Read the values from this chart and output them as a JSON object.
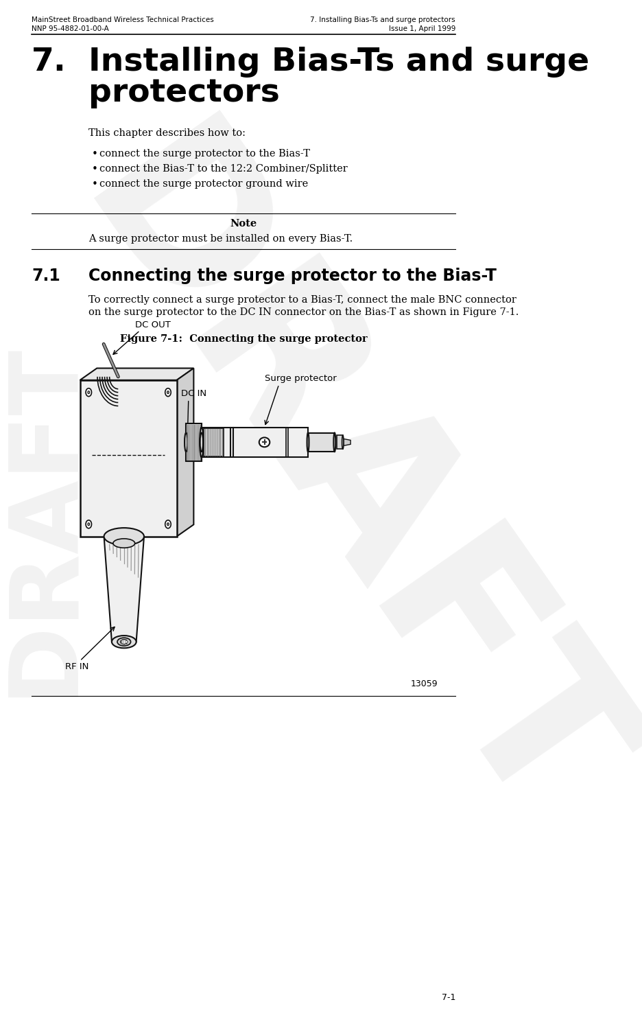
{
  "header_left_line1": "MainStreet Broadband Wireless Technical Practices",
  "header_left_line2": "NNP 95-4882-01-00-A",
  "header_right_line1": "7. Installing Bias-Ts and surge protectors",
  "header_right_line2": "Issue 1, April 1999",
  "chapter_number": "7.",
  "chapter_title_line1": "Installing Bias-Ts and surge",
  "chapter_title_line2": "protectors",
  "intro_text": "This chapter describes how to:",
  "bullets": [
    "connect the surge protector to the Bias-T",
    "connect the Bias-T to the 12:2 Combiner/Splitter",
    "connect the surge protector ground wire"
  ],
  "note_label": "Note",
  "note_text": "A surge protector must be installed on every Bias-T.",
  "section_number": "7.1",
  "section_title": "Connecting the surge protector to the Bias-T",
  "section_body_line1": "To correctly connect a surge protector to a Bias-T, connect the male BNC connector",
  "section_body_line2": "on the surge protector to the DC IN connector on the Bias-T as shown in Figure 7-1.",
  "figure_caption": "Figure 7-1:  Connecting the surge protector",
  "label_dc_out": "DC OUT",
  "label_dc_in": "DC IN",
  "label_surge": "Surge protector",
  "label_rf_in": "RF IN",
  "figure_number": "13059",
  "page_number": "7-1",
  "draft_watermark": "DRAFT",
  "bg_color": "#ffffff",
  "text_color": "#000000",
  "header_line_color": "#000000",
  "edge_color": "#111111",
  "fill_light": "#f0f0f0",
  "fill_mid": "#d8d8d8",
  "fill_dark": "#b0b0b0"
}
